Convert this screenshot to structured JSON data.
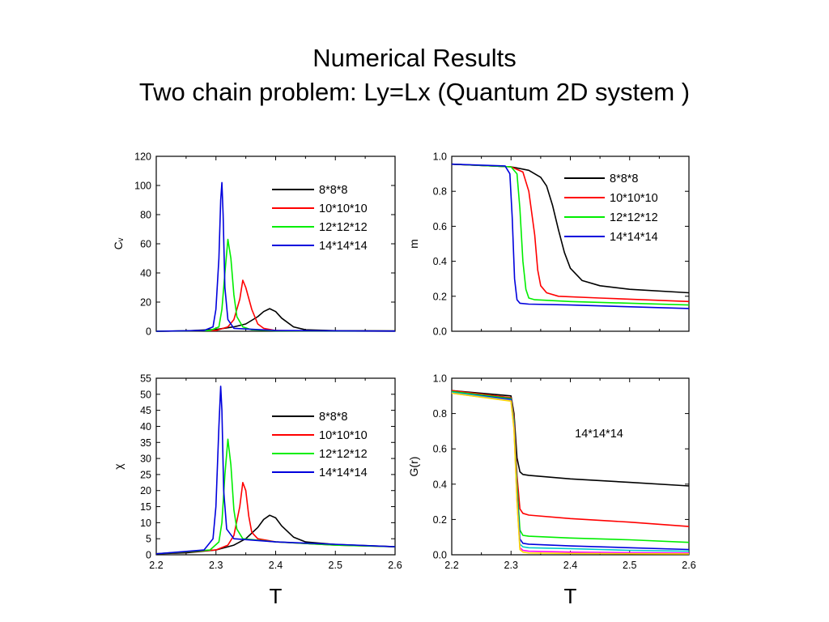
{
  "slide": {
    "title_line1": "Numerical Results",
    "title_line2": "Two chain problem: Ly=Lx (Quantum 2D system )"
  },
  "chart_data": [
    {
      "id": "cv",
      "type": "line",
      "xlabel": "",
      "ylabel": "Cᵥ",
      "xlim": [
        2.2,
        2.6
      ],
      "ylim": [
        0,
        120
      ],
      "xticks": [],
      "yticks": [
        0,
        20,
        40,
        60,
        80,
        100,
        120
      ],
      "legend_position": "top-right",
      "series": [
        {
          "name": "8*8*8",
          "color": "#000000",
          "x": [
            2.2,
            2.25,
            2.3,
            2.33,
            2.35,
            2.37,
            2.38,
            2.39,
            2.4,
            2.41,
            2.43,
            2.45,
            2.5,
            2.6
          ],
          "y": [
            0,
            0.3,
            1.2,
            3,
            5,
            10,
            13.5,
            15.5,
            13.5,
            9,
            3,
            1,
            0.4,
            0.2
          ]
        },
        {
          "name": "10*10*10",
          "color": "#ff0000",
          "x": [
            2.2,
            2.3,
            2.32,
            2.33,
            2.34,
            2.345,
            2.35,
            2.36,
            2.37,
            2.38,
            2.4,
            2.45,
            2.6
          ],
          "y": [
            0,
            0.5,
            3,
            8,
            22,
            35,
            30,
            15,
            5,
            2,
            0.5,
            0.2,
            0.1
          ]
        },
        {
          "name": "12*12*12",
          "color": "#00ee00",
          "x": [
            2.2,
            2.29,
            2.305,
            2.31,
            2.315,
            2.32,
            2.325,
            2.33,
            2.335,
            2.345,
            2.36,
            2.4,
            2.6
          ],
          "y": [
            0,
            0.5,
            3,
            15,
            40,
            63,
            50,
            25,
            10,
            3,
            1,
            0.3,
            0.1
          ]
        },
        {
          "name": "14*14*14",
          "color": "#0000dd",
          "x": [
            2.2,
            2.28,
            2.295,
            2.3,
            2.305,
            2.308,
            2.31,
            2.312,
            2.315,
            2.32,
            2.33,
            2.4,
            2.6
          ],
          "y": [
            0,
            0.5,
            3,
            15,
            50,
            90,
            102,
            80,
            30,
            8,
            2,
            0.5,
            0.1
          ]
        }
      ]
    },
    {
      "id": "m",
      "type": "line",
      "xlabel": "",
      "ylabel": "m",
      "xlim": [
        2.2,
        2.6
      ],
      "ylim": [
        0.0,
        1.0
      ],
      "xticks": [],
      "yticks": [
        "0.0",
        "0.2",
        "0.4",
        "0.6",
        "0.8",
        "1.0"
      ],
      "legend_position": "top-right",
      "series": [
        {
          "name": "8*8*8",
          "color": "#000000",
          "x": [
            2.2,
            2.3,
            2.33,
            2.35,
            2.36,
            2.37,
            2.38,
            2.39,
            2.4,
            2.42,
            2.45,
            2.5,
            2.6
          ],
          "y": [
            0.955,
            0.94,
            0.92,
            0.88,
            0.83,
            0.72,
            0.58,
            0.45,
            0.36,
            0.29,
            0.26,
            0.24,
            0.22
          ]
        },
        {
          "name": "10*10*10",
          "color": "#ff0000",
          "x": [
            2.2,
            2.3,
            2.32,
            2.33,
            2.34,
            2.345,
            2.35,
            2.36,
            2.38,
            2.45,
            2.6
          ],
          "y": [
            0.955,
            0.94,
            0.91,
            0.8,
            0.55,
            0.35,
            0.26,
            0.22,
            0.2,
            0.19,
            0.17
          ]
        },
        {
          "name": "12*12*12",
          "color": "#00ee00",
          "x": [
            2.2,
            2.3,
            2.31,
            2.315,
            2.32,
            2.325,
            2.33,
            2.34,
            2.4,
            2.6
          ],
          "y": [
            0.955,
            0.94,
            0.9,
            0.7,
            0.4,
            0.24,
            0.19,
            0.18,
            0.17,
            0.15
          ]
        },
        {
          "name": "14*14*14",
          "color": "#0000dd",
          "x": [
            2.2,
            2.29,
            2.298,
            2.302,
            2.306,
            2.31,
            2.315,
            2.33,
            2.4,
            2.6
          ],
          "y": [
            0.955,
            0.945,
            0.9,
            0.65,
            0.3,
            0.18,
            0.16,
            0.155,
            0.15,
            0.13
          ]
        }
      ]
    },
    {
      "id": "chi",
      "type": "line",
      "xlabel": "T",
      "ylabel": "χ",
      "xlim": [
        2.2,
        2.6
      ],
      "ylim": [
        0,
        55
      ],
      "xticks": [
        "2.2",
        "2.3",
        "2.4",
        "2.5",
        "2.6"
      ],
      "yticks": [
        0,
        5,
        10,
        15,
        20,
        25,
        30,
        35,
        40,
        45,
        50,
        55
      ],
      "legend_position": "right",
      "series": [
        {
          "name": "8*8*8",
          "color": "#000000",
          "x": [
            2.2,
            2.25,
            2.3,
            2.33,
            2.35,
            2.37,
            2.38,
            2.39,
            2.4,
            2.41,
            2.43,
            2.45,
            2.5,
            2.6
          ],
          "y": [
            0.3,
            0.6,
            1.5,
            3,
            5,
            8.5,
            11,
            12.3,
            11.5,
            9,
            5.5,
            4,
            3.2,
            2.5
          ]
        },
        {
          "name": "10*10*10",
          "color": "#ff0000",
          "x": [
            2.2,
            2.3,
            2.32,
            2.33,
            2.34,
            2.345,
            2.35,
            2.355,
            2.36,
            2.37,
            2.4,
            2.5,
            2.6
          ],
          "y": [
            0.3,
            1.5,
            3,
            6,
            15,
            22.5,
            20,
            12,
            7,
            5,
            4,
            3,
            2.5
          ]
        },
        {
          "name": "12*12*12",
          "color": "#00ee00",
          "x": [
            2.2,
            2.29,
            2.305,
            2.31,
            2.315,
            2.32,
            2.325,
            2.33,
            2.335,
            2.345,
            2.4,
            2.5,
            2.6
          ],
          "y": [
            0.3,
            1.5,
            4,
            10,
            25,
            36,
            28,
            14,
            8,
            5,
            4,
            3,
            2.5
          ]
        },
        {
          "name": "14*14*14",
          "color": "#0000dd",
          "x": [
            2.2,
            2.28,
            2.295,
            2.3,
            2.305,
            2.308,
            2.31,
            2.313,
            2.318,
            2.33,
            2.4,
            2.6
          ],
          "y": [
            0.3,
            1.5,
            5,
            15,
            40,
            52.5,
            45,
            20,
            8,
            5,
            4,
            2.5
          ]
        }
      ]
    },
    {
      "id": "g",
      "type": "line",
      "xlabel": "T",
      "ylabel": "G(r)",
      "xlim": [
        2.2,
        2.6
      ],
      "ylim": [
        0.0,
        1.0
      ],
      "xticks": [
        "2.2",
        "2.3",
        "2.4",
        "2.5",
        "2.6"
      ],
      "yticks": [
        "0.0",
        "0.2",
        "0.4",
        "0.6",
        "0.8",
        "1.0"
      ],
      "annotation": "14*14*14",
      "series": [
        {
          "color": "#000000",
          "x": [
            2.2,
            2.3,
            2.305,
            2.31,
            2.315,
            2.32,
            2.33,
            2.4,
            2.5,
            2.6
          ],
          "y": [
            0.93,
            0.9,
            0.8,
            0.55,
            0.47,
            0.455,
            0.45,
            0.43,
            0.41,
            0.39
          ]
        },
        {
          "color": "#ff0000",
          "x": [
            2.2,
            2.3,
            2.305,
            2.31,
            2.315,
            2.32,
            2.33,
            2.4,
            2.5,
            2.6
          ],
          "y": [
            0.93,
            0.89,
            0.78,
            0.45,
            0.26,
            0.235,
            0.225,
            0.205,
            0.185,
            0.16
          ]
        },
        {
          "color": "#00ee00",
          "x": [
            2.2,
            2.3,
            2.305,
            2.31,
            2.315,
            2.32,
            2.33,
            2.4,
            2.5,
            2.6
          ],
          "y": [
            0.925,
            0.885,
            0.76,
            0.4,
            0.14,
            0.11,
            0.105,
            0.095,
            0.085,
            0.07
          ]
        },
        {
          "color": "#0000dd",
          "x": [
            2.2,
            2.3,
            2.305,
            2.31,
            2.315,
            2.32,
            2.33,
            2.4,
            2.5,
            2.6
          ],
          "y": [
            0.92,
            0.88,
            0.74,
            0.35,
            0.09,
            0.065,
            0.06,
            0.05,
            0.04,
            0.03
          ]
        },
        {
          "color": "#00cccc",
          "x": [
            2.2,
            2.3,
            2.305,
            2.31,
            2.315,
            2.32,
            2.33,
            2.4,
            2.5,
            2.6
          ],
          "y": [
            0.92,
            0.875,
            0.73,
            0.33,
            0.06,
            0.045,
            0.04,
            0.035,
            0.025,
            0.02
          ]
        },
        {
          "color": "#ff00ff",
          "x": [
            2.2,
            2.3,
            2.305,
            2.31,
            2.315,
            2.32,
            2.33,
            2.4,
            2.5,
            2.6
          ],
          "y": [
            0.915,
            0.872,
            0.72,
            0.31,
            0.04,
            0.025,
            0.02,
            0.015,
            0.012,
            0.01
          ]
        },
        {
          "color": "#ffdd00",
          "x": [
            2.2,
            2.3,
            2.305,
            2.31,
            2.315,
            2.32,
            2.33,
            2.4,
            2.5,
            2.6
          ],
          "y": [
            0.915,
            0.87,
            0.71,
            0.3,
            0.03,
            0.015,
            0.01,
            0.008,
            0.006,
            0.005
          ]
        }
      ]
    }
  ]
}
